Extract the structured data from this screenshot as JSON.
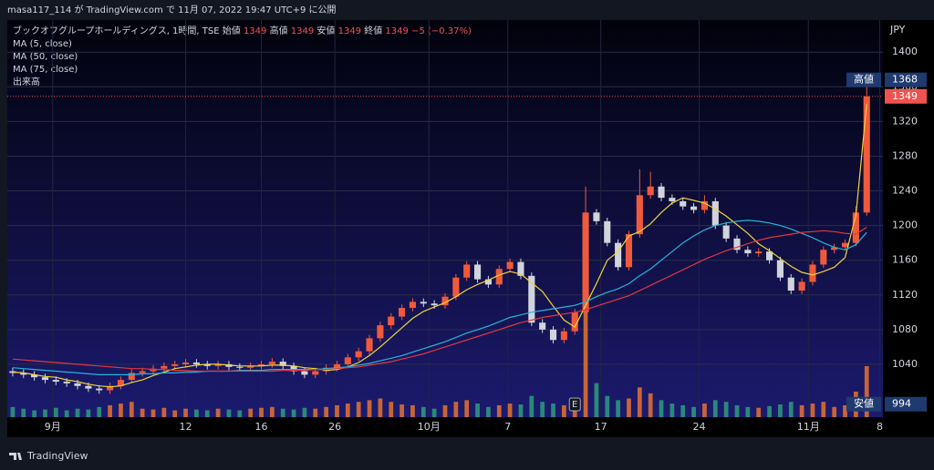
{
  "header": {
    "publisher": "masa117_114 が TradingView.com で 11月 07, 2022 19:47 UTC+9 に公開"
  },
  "footer": {
    "logo": "TradingView"
  },
  "chart_data": {
    "type": "candlestick",
    "title": "ブックオフグループホールディングス, 1時間, TSE",
    "legend_values": {
      "open_label": "始値",
      "open": 1349,
      "high_label": "高値",
      "high": 1349,
      "low_label": "安値",
      "low": 1349,
      "close_label": "終値",
      "close": 1349,
      "change": "−5 (−0.37%)"
    },
    "volume_name": "出来高",
    "currency": "JPY",
    "open": [
      1032,
      1030,
      1028,
      1025,
      1022,
      1020,
      1018,
      1015,
      1012,
      1010,
      1015,
      1022,
      1030,
      1032,
      1035,
      1038,
      1040,
      1042,
      1040,
      1038,
      1040,
      1037,
      1036,
      1038,
      1040,
      1043,
      1038,
      1032,
      1028,
      1032,
      1036,
      1040,
      1048,
      1055,
      1070,
      1085,
      1095,
      1105,
      1112,
      1110,
      1108,
      1118,
      1140,
      1155,
      1138,
      1132,
      1150,
      1158,
      1142,
      1088,
      1080,
      1068,
      1078,
      1100,
      1215,
      1205,
      1180,
      1152,
      1190,
      1235,
      1245,
      1232,
      1228,
      1222,
      1218,
      1228,
      1200,
      1185,
      1172,
      1168,
      1170,
      1160,
      1140,
      1125,
      1135,
      1155,
      1172,
      1175,
      1180,
      1215
    ],
    "high": [
      1036,
      1034,
      1032,
      1029,
      1026,
      1024,
      1022,
      1019,
      1016,
      1019,
      1026,
      1034,
      1036,
      1039,
      1042,
      1044,
      1046,
      1046,
      1044,
      1044,
      1044,
      1041,
      1042,
      1044,
      1047,
      1047,
      1042,
      1036,
      1036,
      1040,
      1044,
      1052,
      1059,
      1074,
      1089,
      1099,
      1109,
      1116,
      1116,
      1114,
      1122,
      1144,
      1159,
      1159,
      1142,
      1154,
      1162,
      1162,
      1146,
      1092,
      1084,
      1082,
      1104,
      1245,
      1219,
      1209,
      1184,
      1194,
      1265,
      1262,
      1249,
      1236,
      1232,
      1226,
      1235,
      1232,
      1204,
      1189,
      1176,
      1174,
      1174,
      1164,
      1144,
      1139,
      1159,
      1176,
      1179,
      1184,
      1222,
      1368
    ],
    "low": [
      1026,
      1024,
      1021,
      1018,
      1016,
      1014,
      1011,
      1008,
      1006,
      1006,
      1011,
      1018,
      1026,
      1028,
      1031,
      1034,
      1036,
      1036,
      1034,
      1034,
      1033,
      1032,
      1032,
      1034,
      1036,
      1034,
      1028,
      1024,
      1024,
      1028,
      1032,
      1036,
      1044,
      1051,
      1066,
      1081,
      1091,
      1101,
      1106,
      1104,
      1104,
      1114,
      1136,
      1134,
      1128,
      1128,
      1146,
      1138,
      1084,
      1076,
      1064,
      1064,
      1074,
      1096,
      1201,
      1176,
      1148,
      1148,
      1186,
      1231,
      1228,
      1224,
      1218,
      1214,
      1214,
      1196,
      1181,
      1168,
      1164,
      1164,
      1156,
      1136,
      1121,
      1121,
      1131,
      1151,
      1168,
      1171,
      1176,
      1211
    ],
    "close": [
      1030,
      1028,
      1025,
      1022,
      1020,
      1018,
      1015,
      1012,
      1010,
      1015,
      1022,
      1030,
      1032,
      1035,
      1038,
      1040,
      1042,
      1040,
      1038,
      1040,
      1037,
      1036,
      1038,
      1040,
      1043,
      1038,
      1032,
      1028,
      1032,
      1036,
      1040,
      1048,
      1055,
      1070,
      1085,
      1095,
      1105,
      1112,
      1110,
      1108,
      1118,
      1140,
      1155,
      1138,
      1132,
      1150,
      1158,
      1142,
      1088,
      1080,
      1068,
      1078,
      1100,
      1215,
      1205,
      1180,
      1152,
      1190,
      1235,
      1245,
      1232,
      1228,
      1222,
      1218,
      1228,
      1200,
      1185,
      1172,
      1168,
      1170,
      1160,
      1140,
      1125,
      1135,
      1155,
      1172,
      1175,
      1180,
      1215,
      1349
    ],
    "volume": [
      12,
      10,
      8,
      9,
      11,
      8,
      10,
      9,
      12,
      14,
      16,
      18,
      10,
      9,
      11,
      8,
      10,
      9,
      8,
      10,
      9,
      8,
      10,
      11,
      12,
      10,
      9,
      11,
      10,
      12,
      14,
      16,
      18,
      20,
      22,
      18,
      15,
      14,
      12,
      10,
      14,
      18,
      20,
      16,
      12,
      14,
      16,
      15,
      25,
      18,
      16,
      14,
      20,
      130,
      40,
      25,
      20,
      22,
      35,
      28,
      20,
      16,
      14,
      12,
      16,
      20,
      18,
      14,
      12,
      11,
      13,
      15,
      18,
      14,
      16,
      18,
      12,
      14,
      30,
      60
    ],
    "volume_lim": [
      0,
      150
    ],
    "up_color": "#ef5a3c",
    "down_color": "#d1d4dc",
    "volume_up_color": "#e8732e",
    "volume_down_color": "#2e9e7a",
    "series": [
      {
        "name": "MA (5, close)",
        "color": "#f0d43a",
        "values": [
          1031,
          1030,
          1028,
          1026,
          1025,
          1022,
          1020,
          1017,
          1015,
          1014,
          1015,
          1019,
          1022,
          1027,
          1031,
          1035,
          1037,
          1039,
          1040,
          1040,
          1039,
          1038,
          1038,
          1038,
          1039,
          1039,
          1038,
          1036,
          1035,
          1033,
          1034,
          1037,
          1042,
          1050,
          1060,
          1071,
          1082,
          1093,
          1101,
          1106,
          1111,
          1118,
          1126,
          1132,
          1137,
          1143,
          1147,
          1144,
          1134,
          1124,
          1107,
          1091,
          1083,
          1108,
          1133,
          1160,
          1170,
          1188,
          1193,
          1202,
          1215,
          1226,
          1232,
          1229,
          1226,
          1219,
          1211,
          1201,
          1191,
          1179,
          1171,
          1162,
          1153,
          1146,
          1143,
          1147,
          1152,
          1163,
          1212,
          1340
        ]
      },
      {
        "name": "MA (50, close)",
        "color": "#26b5d9",
        "values": [
          1036,
          1035,
          1034,
          1033,
          1032,
          1031,
          1030,
          1029,
          1028,
          1028,
          1028,
          1028,
          1029,
          1029,
          1030,
          1030,
          1031,
          1031,
          1032,
          1032,
          1032,
          1033,
          1033,
          1033,
          1034,
          1034,
          1034,
          1034,
          1034,
          1035,
          1036,
          1037,
          1039,
          1041,
          1044,
          1047,
          1050,
          1054,
          1058,
          1062,
          1066,
          1071,
          1076,
          1080,
          1084,
          1089,
          1094,
          1097,
          1100,
          1102,
          1104,
          1106,
          1108,
          1112,
          1118,
          1123,
          1127,
          1133,
          1142,
          1150,
          1160,
          1170,
          1180,
          1188,
          1195,
          1200,
          1203,
          1205,
          1206,
          1205,
          1203,
          1200,
          1196,
          1191,
          1186,
          1180,
          1175,
          1172,
          1178,
          1192
        ]
      },
      {
        "name": "MA (75, close)",
        "color": "#e0383e",
        "values": [
          1046,
          1045,
          1044,
          1043,
          1042,
          1041,
          1040,
          1039,
          1038,
          1037,
          1036,
          1035,
          1035,
          1034,
          1034,
          1033,
          1033,
          1032,
          1032,
          1032,
          1032,
          1032,
          1032,
          1032,
          1032,
          1033,
          1033,
          1033,
          1034,
          1034,
          1035,
          1036,
          1037,
          1039,
          1041,
          1043,
          1046,
          1049,
          1052,
          1056,
          1060,
          1064,
          1068,
          1072,
          1076,
          1080,
          1084,
          1088,
          1091,
          1094,
          1096,
          1098,
          1100,
          1103,
          1107,
          1111,
          1115,
          1119,
          1125,
          1131,
          1137,
          1143,
          1149,
          1155,
          1161,
          1166,
          1171,
          1175,
          1179,
          1183,
          1186,
          1188,
          1190,
          1192,
          1193,
          1194,
          1193,
          1191,
          1190,
          1198
        ]
      }
    ],
    "xlim": [
      -0.5,
      80.5
    ],
    "xticks": [
      {
        "value": 3.7,
        "label": "9月"
      },
      {
        "value": 16,
        "label": "12"
      },
      {
        "value": 23,
        "label": "16"
      },
      {
        "value": 29.8,
        "label": "26"
      },
      {
        "value": 38.5,
        "label": "10月"
      },
      {
        "value": 45.8,
        "label": "7"
      },
      {
        "value": 54.4,
        "label": "17"
      },
      {
        "value": 63.5,
        "label": "24"
      },
      {
        "value": 73.6,
        "label": "11月"
      },
      {
        "value": 80.2,
        "label": "8"
      }
    ],
    "ylim": [
      979,
      1437
    ],
    "yticks": [
      1040,
      1080,
      1120,
      1160,
      1200,
      1240,
      1280,
      1320,
      1360,
      1400
    ],
    "grid": true,
    "high_tag_label": "高値",
    "low_tag": {
      "label": "安値",
      "value": 994
    },
    "event_marker": {
      "label": "E",
      "x": 52
    }
  }
}
